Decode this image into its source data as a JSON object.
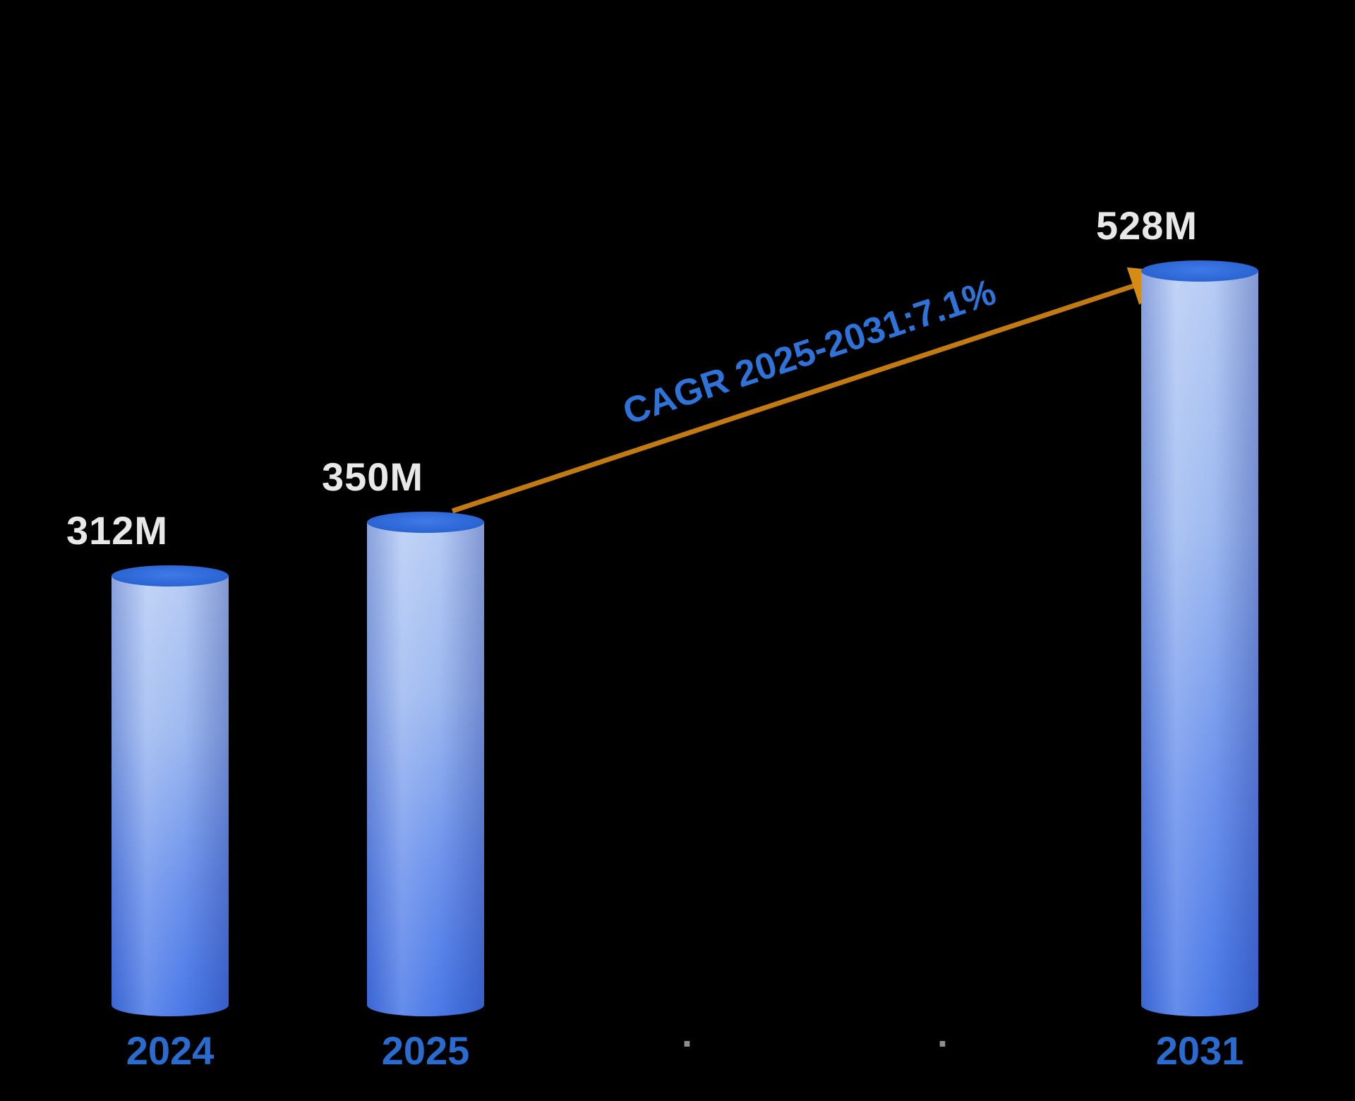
{
  "chart_data": {
    "type": "bar",
    "categories": [
      "2024",
      "2025",
      "2031"
    ],
    "values": [
      312,
      350,
      528
    ],
    "value_labels": [
      "312M",
      "350M",
      "528M"
    ],
    "unit": "M",
    "ylim": [
      0,
      560
    ],
    "grid": false,
    "legend": "none",
    "separator_dots": [
      ".",
      "."
    ],
    "annotation": {
      "text": "CAGR 2025-2031:7.1%",
      "from_category": "2025",
      "to_category": "2031"
    }
  },
  "colors": {
    "background": "#000000",
    "bar_body_light": "#b6cbf4",
    "bar_body_dark": "#4676e6",
    "bar_cap": "#2b66d4",
    "value_label": "#e8e8e8",
    "year_label": "#2a6bd0",
    "arrow": "#c27a12",
    "cagr_text": "#2f72d8",
    "separator_dot": "#8f8f8f"
  }
}
